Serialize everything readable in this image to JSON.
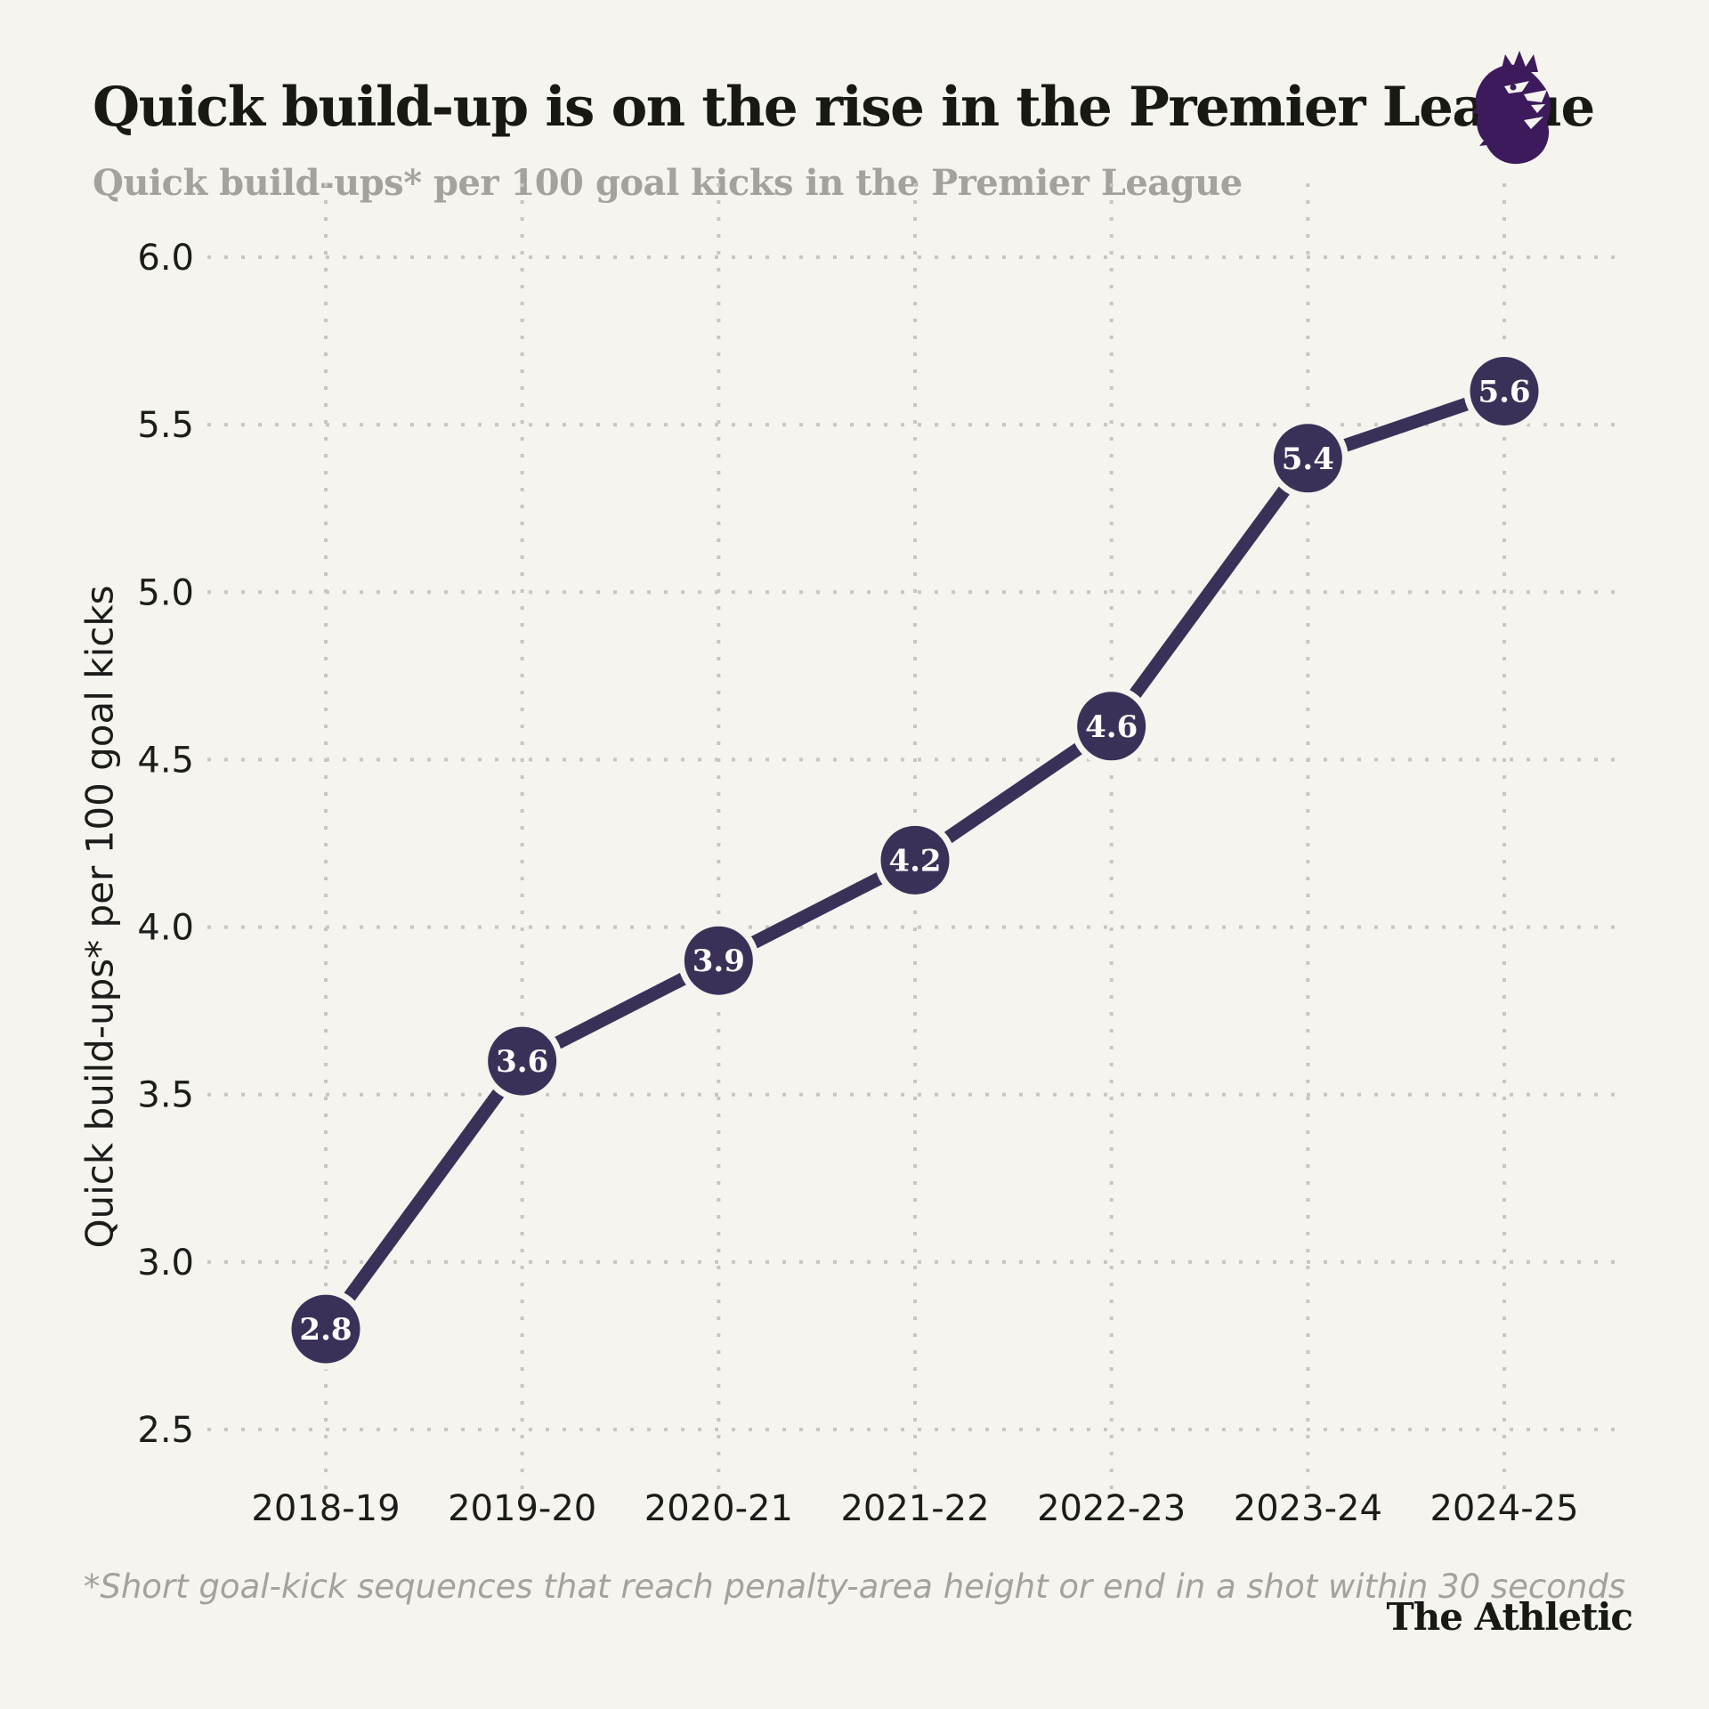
{
  "header": {
    "title": "Quick build-up is on the rise in the Premier League",
    "subtitle": "Quick build-ups* per 100 goal kicks in the Premier League"
  },
  "chart_data": {
    "type": "line",
    "title": "Quick build-up is on the rise in the Premier League",
    "subtitle": "Quick build-ups* per 100 goal kicks in the Premier League",
    "categories": [
      "2018-19",
      "2019-20",
      "2020-21",
      "2021-22",
      "2022-23",
      "2023-24",
      "2024-25"
    ],
    "series": [
      {
        "name": "Quick build-ups per 100 goal kicks",
        "values": [
          2.8,
          3.6,
          3.9,
          4.2,
          4.6,
          5.4,
          5.6
        ]
      }
    ],
    "point_labels": [
      "2.8",
      "3.6",
      "3.9",
      "4.2",
      "4.6",
      "5.4",
      "5.6"
    ],
    "xlabel": "",
    "ylabel": "Quick build-ups* per 100 goal kicks",
    "ylim": [
      2.5,
      6.0
    ],
    "yticks": [
      6.0,
      5.5,
      5.0,
      4.5,
      4.0,
      3.5,
      3.0,
      2.5
    ],
    "ytick_labels": [
      "6.0",
      "5.5",
      "5.0",
      "4.5",
      "4.0",
      "3.5",
      "3.0",
      "2.5"
    ],
    "grid": "dotted, both horizontal and vertical",
    "legend": "none",
    "colors": {
      "line": "#3b3158",
      "point": "#3b3158",
      "point_label": "#ffffff",
      "grid": "#c7c6c1",
      "background": "#f5f4ef",
      "title": "#181815",
      "subtitle": "#a3a29d",
      "axis_text": "#1c1c1a",
      "footnote": "#a3a29d",
      "logo_purple": "#3d1a5b"
    }
  },
  "footnote": "*Short goal-kick sequences that reach penalty-area height or end in a shot within 30 seconds",
  "credit": "The Athletic"
}
